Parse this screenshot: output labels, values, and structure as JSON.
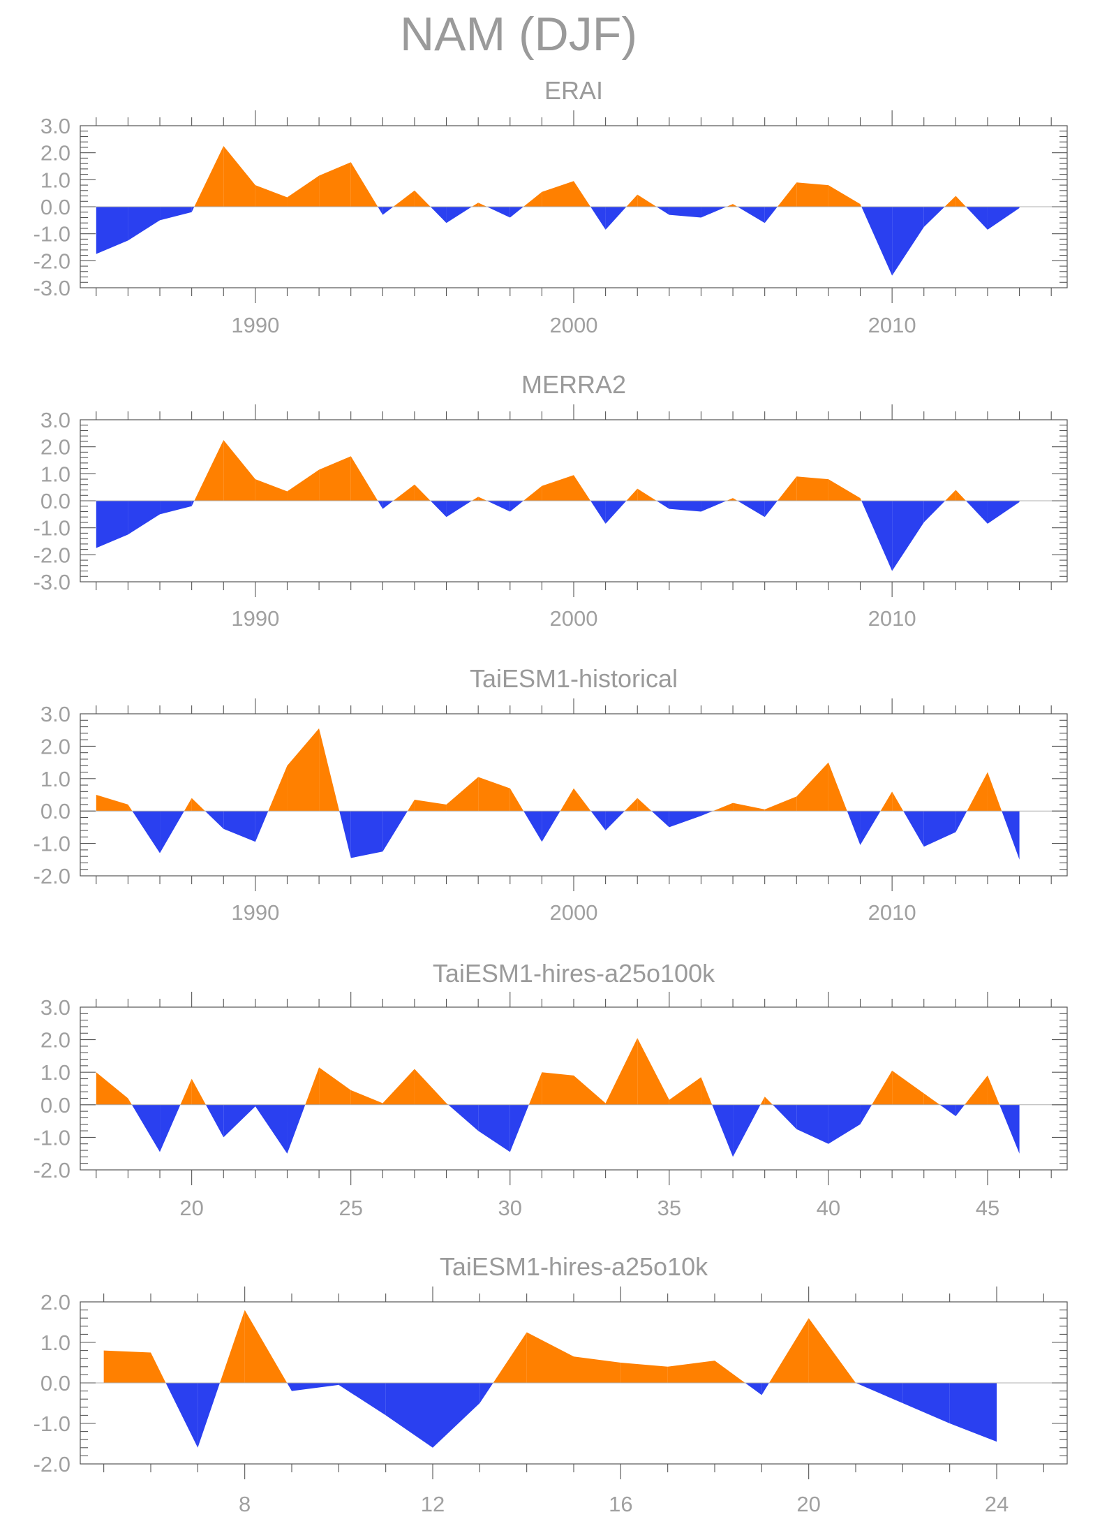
{
  "figure": {
    "title": "NAM (DJF)",
    "colors": {
      "positive": "#ff8000",
      "negative": "#2a40f0",
      "zero_line": "#b0b0b0",
      "frame": "#555555",
      "text": "#9a9a9a"
    }
  },
  "chart_data": [
    {
      "type": "area",
      "title": "ERAI",
      "xlabel": "",
      "ylabel": "",
      "ylim": [
        -3.0,
        3.0
      ],
      "yticks": [
        "3.0",
        "2.0",
        "1.0",
        "0.0",
        "-1.0",
        "-2.0",
        "-3.0"
      ],
      "xlim": [
        1984.5,
        2015.5
      ],
      "xticks": [
        1990,
        2000,
        2010
      ],
      "xtick_labels": [
        "1990",
        "2000",
        "2010"
      ],
      "grid": false,
      "x": [
        1985,
        1986,
        1987,
        1988,
        1989,
        1990,
        1991,
        1992,
        1993,
        1994,
        1995,
        1996,
        1997,
        1998,
        1999,
        2000,
        2001,
        2002,
        2003,
        2004,
        2005,
        2006,
        2007,
        2008,
        2009,
        2010,
        2011,
        2012,
        2013,
        2014
      ],
      "values": [
        -1.75,
        -1.25,
        -0.5,
        -0.2,
        2.25,
        0.8,
        0.35,
        1.15,
        1.65,
        -0.3,
        0.6,
        -0.6,
        0.15,
        -0.4,
        0.55,
        0.95,
        -0.85,
        0.45,
        -0.3,
        -0.4,
        0.1,
        -0.6,
        0.9,
        0.8,
        0.1,
        -2.55,
        -0.75,
        0.4,
        -0.85,
        -0.05
      ]
    },
    {
      "type": "area",
      "title": "MERRA2",
      "xlabel": "",
      "ylabel": "",
      "ylim": [
        -3.0,
        3.0
      ],
      "yticks": [
        "3.0",
        "2.0",
        "1.0",
        "0.0",
        "-1.0",
        "-2.0",
        "-3.0"
      ],
      "xlim": [
        1984.5,
        2015.5
      ],
      "xticks": [
        1990,
        2000,
        2010
      ],
      "xtick_labels": [
        "1990",
        "2000",
        "2010"
      ],
      "grid": false,
      "x": [
        1985,
        1986,
        1987,
        1988,
        1989,
        1990,
        1991,
        1992,
        1993,
        1994,
        1995,
        1996,
        1997,
        1998,
        1999,
        2000,
        2001,
        2002,
        2003,
        2004,
        2005,
        2006,
        2007,
        2008,
        2009,
        2010,
        2011,
        2012,
        2013,
        2014
      ],
      "values": [
        -1.75,
        -1.25,
        -0.5,
        -0.2,
        2.25,
        0.8,
        0.35,
        1.15,
        1.65,
        -0.3,
        0.6,
        -0.6,
        0.15,
        -0.4,
        0.55,
        0.95,
        -0.85,
        0.45,
        -0.3,
        -0.4,
        0.1,
        -0.6,
        0.9,
        0.8,
        0.1,
        -2.6,
        -0.8,
        0.4,
        -0.85,
        -0.05
      ]
    },
    {
      "type": "area",
      "title": "TaiESM1-historical",
      "xlabel": "",
      "ylabel": "",
      "ylim": [
        -2.0,
        3.0
      ],
      "yticks": [
        "3.0",
        "2.0",
        "1.0",
        "0.0",
        "-1.0",
        "-2.0"
      ],
      "xlim": [
        1984.5,
        2015.5
      ],
      "xticks": [
        1990,
        2000,
        2010
      ],
      "xtick_labels": [
        "1990",
        "2000",
        "2010"
      ],
      "grid": false,
      "x": [
        1985,
        1986,
        1987,
        1988,
        1989,
        1990,
        1991,
        1992,
        1993,
        1994,
        1995,
        1996,
        1997,
        1998,
        1999,
        2000,
        2001,
        2002,
        2003,
        2004,
        2005,
        2006,
        2007,
        2008,
        2009,
        2010,
        2011,
        2012,
        2013,
        2014
      ],
      "values": [
        0.5,
        0.2,
        -1.3,
        0.4,
        -0.55,
        -0.95,
        1.4,
        2.55,
        -1.45,
        -1.25,
        0.35,
        0.2,
        1.05,
        0.7,
        -0.95,
        0.7,
        -0.6,
        0.4,
        -0.5,
        -0.15,
        0.25,
        0.05,
        0.45,
        1.5,
        -1.05,
        0.6,
        -1.1,
        -0.65,
        1.2,
        -1.5
      ]
    },
    {
      "type": "area",
      "title": "TaiESM1-hires-a25o100k",
      "xlabel": "",
      "ylabel": "",
      "ylim": [
        -2.0,
        3.0
      ],
      "yticks": [
        "3.0",
        "2.0",
        "1.0",
        "0.0",
        "-1.0",
        "-2.0"
      ],
      "xlim": [
        16.5,
        47.5
      ],
      "xticks": [
        20,
        25,
        30,
        35,
        40,
        45
      ],
      "xtick_labels": [
        "20",
        "25",
        "30",
        "35",
        "40",
        "45"
      ],
      "grid": false,
      "x": [
        17,
        18,
        19,
        20,
        21,
        22,
        23,
        24,
        25,
        26,
        27,
        28,
        29,
        30,
        31,
        32,
        33,
        34,
        35,
        36,
        37,
        38,
        39,
        40,
        41,
        42,
        43,
        44,
        45,
        46
      ],
      "values": [
        1.0,
        0.2,
        -1.45,
        0.8,
        -1.0,
        -0.05,
        -1.5,
        1.15,
        0.45,
        0.05,
        1.1,
        0.05,
        -0.8,
        -1.45,
        1.0,
        0.9,
        0.05,
        2.05,
        0.15,
        0.85,
        -1.6,
        0.25,
        -0.75,
        -1.2,
        -0.6,
        1.05,
        0.35,
        -0.35,
        0.9,
        -1.5
      ]
    },
    {
      "type": "area",
      "title": "TaiESM1-hires-a25o10k",
      "xlabel": "",
      "ylabel": "",
      "ylim": [
        -2.0,
        2.0
      ],
      "yticks": [
        "2.0",
        "1.0",
        "0.0",
        "-1.0",
        "-2.0"
      ],
      "xlim": [
        4.5,
        25.5
      ],
      "xticks": [
        8,
        12,
        16,
        20,
        24
      ],
      "xtick_labels": [
        "8",
        "12",
        "16",
        "20",
        "24"
      ],
      "grid": false,
      "x": [
        5,
        6,
        7,
        8,
        9,
        10,
        11,
        12,
        13,
        14,
        15,
        16,
        17,
        18,
        19,
        20,
        21,
        22,
        23,
        24
      ],
      "values": [
        0.8,
        0.75,
        -1.6,
        1.8,
        -0.2,
        -0.05,
        -0.8,
        -1.6,
        -0.5,
        1.25,
        0.65,
        0.5,
        0.4,
        0.55,
        -0.3,
        1.6,
        0.0,
        -0.5,
        -1.0,
        -1.45
      ]
    }
  ]
}
